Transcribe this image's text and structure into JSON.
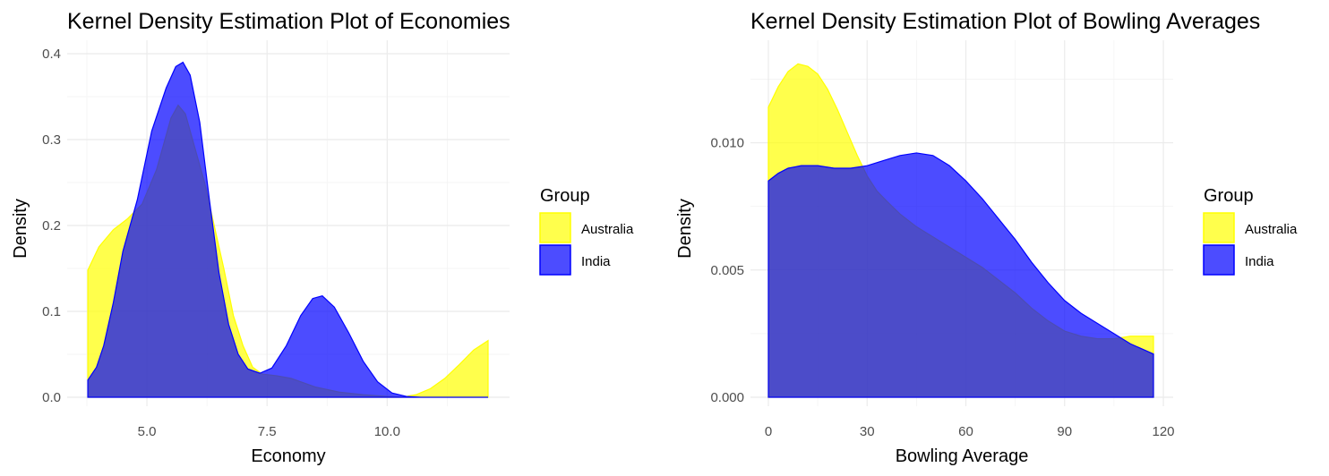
{
  "chart_data": [
    {
      "type": "area",
      "title": "Kernel Density Estimation Plot of Economies",
      "xlabel": "Economy",
      "ylabel": "Density",
      "xlim": [
        3.75,
        12.1
      ],
      "ylim": [
        0,
        0.4
      ],
      "xticks": [
        5.0,
        7.5,
        10.0
      ],
      "xtick_labels": [
        "5.0",
        "7.5",
        "10.0"
      ],
      "xminor": [
        3.75,
        6.25,
        8.75,
        11.25
      ],
      "yticks": [
        0.0,
        0.1,
        0.2,
        0.3,
        0.4
      ],
      "ytick_labels": [
        "0.0",
        "0.1",
        "0.2",
        "0.3",
        "0.4"
      ],
      "yminor": [
        0.05,
        0.15,
        0.25,
        0.35
      ],
      "legend": {
        "title": "Group",
        "position": "right"
      },
      "series": [
        {
          "name": "Australia",
          "color": "#ffff00",
          "outline": "#ffff00",
          "points": [
            [
              3.77,
              0.148
            ],
            [
              4.0,
              0.175
            ],
            [
              4.3,
              0.195
            ],
            [
              4.6,
              0.208
            ],
            [
              4.9,
              0.225
            ],
            [
              5.2,
              0.265
            ],
            [
              5.5,
              0.325
            ],
            [
              5.65,
              0.34
            ],
            [
              5.8,
              0.33
            ],
            [
              6.0,
              0.29
            ],
            [
              6.2,
              0.25
            ],
            [
              6.4,
              0.2
            ],
            [
              6.6,
              0.15
            ],
            [
              6.8,
              0.095
            ],
            [
              7.0,
              0.06
            ],
            [
              7.2,
              0.035
            ],
            [
              7.4,
              0.027
            ],
            [
              7.7,
              0.025
            ],
            [
              8.0,
              0.022
            ],
            [
              8.5,
              0.012
            ],
            [
              9.0,
              0.006
            ],
            [
              9.5,
              0.003
            ],
            [
              10.0,
              0.001
            ],
            [
              10.3,
              0.0
            ],
            [
              10.6,
              0.003
            ],
            [
              10.9,
              0.01
            ],
            [
              11.2,
              0.022
            ],
            [
              11.5,
              0.038
            ],
            [
              11.8,
              0.055
            ],
            [
              12.1,
              0.066
            ]
          ]
        },
        {
          "name": "India",
          "color": "#0000ff",
          "outline": "#0000ff",
          "points": [
            [
              3.77,
              0.02
            ],
            [
              3.95,
              0.035
            ],
            [
              4.1,
              0.06
            ],
            [
              4.3,
              0.11
            ],
            [
              4.5,
              0.17
            ],
            [
              4.8,
              0.23
            ],
            [
              5.1,
              0.31
            ],
            [
              5.4,
              0.36
            ],
            [
              5.6,
              0.385
            ],
            [
              5.75,
              0.39
            ],
            [
              5.9,
              0.375
            ],
            [
              6.1,
              0.32
            ],
            [
              6.3,
              0.23
            ],
            [
              6.5,
              0.145
            ],
            [
              6.7,
              0.085
            ],
            [
              6.9,
              0.05
            ],
            [
              7.1,
              0.033
            ],
            [
              7.35,
              0.028
            ],
            [
              7.6,
              0.034
            ],
            [
              7.9,
              0.06
            ],
            [
              8.2,
              0.095
            ],
            [
              8.45,
              0.115
            ],
            [
              8.65,
              0.118
            ],
            [
              8.9,
              0.105
            ],
            [
              9.2,
              0.075
            ],
            [
              9.5,
              0.042
            ],
            [
              9.8,
              0.018
            ],
            [
              10.1,
              0.005
            ],
            [
              10.4,
              0.001
            ],
            [
              10.7,
              0.0
            ],
            [
              12.1,
              0.0
            ]
          ]
        }
      ]
    },
    {
      "type": "area",
      "title": "Kernel Density Estimation Plot of Bowling Averages",
      "xlabel": "Bowling Average",
      "ylabel": "Density",
      "xlim": [
        0,
        117
      ],
      "ylim": [
        0,
        0.0135
      ],
      "xticks": [
        0,
        30,
        60,
        90,
        120
      ],
      "xtick_labels": [
        "0",
        "30",
        "60",
        "90",
        "120"
      ],
      "xminor": [
        15,
        45,
        75,
        105
      ],
      "yticks": [
        0.0,
        0.005,
        0.01
      ],
      "ytick_labels": [
        "0.000",
        "0.005",
        "0.010"
      ],
      "yminor": [
        0.0025,
        0.0075,
        0.0125
      ],
      "legend": {
        "title": "Group",
        "position": "right"
      },
      "series": [
        {
          "name": "Australia",
          "color": "#ffff00",
          "outline": "#ffff00",
          "points": [
            [
              0,
              0.0114
            ],
            [
              3,
              0.0122
            ],
            [
              6,
              0.0128
            ],
            [
              9,
              0.0131
            ],
            [
              12,
              0.013
            ],
            [
              15,
              0.0127
            ],
            [
              18,
              0.0121
            ],
            [
              21,
              0.0113
            ],
            [
              24,
              0.0104
            ],
            [
              27,
              0.0095
            ],
            [
              30,
              0.0087
            ],
            [
              33,
              0.0081
            ],
            [
              36,
              0.0077
            ],
            [
              40,
              0.0072
            ],
            [
              45,
              0.0067
            ],
            [
              50,
              0.0063
            ],
            [
              55,
              0.0059
            ],
            [
              60,
              0.0055
            ],
            [
              65,
              0.0051
            ],
            [
              70,
              0.0046
            ],
            [
              75,
              0.0041
            ],
            [
              80,
              0.0035
            ],
            [
              85,
              0.003
            ],
            [
              90,
              0.0026
            ],
            [
              95,
              0.0024
            ],
            [
              100,
              0.0023
            ],
            [
              105,
              0.0023
            ],
            [
              110,
              0.0024
            ],
            [
              117,
              0.0024
            ]
          ]
        },
        {
          "name": "India",
          "color": "#0000ff",
          "outline": "#0000ff",
          "points": [
            [
              0,
              0.0085
            ],
            [
              3,
              0.0088
            ],
            [
              6,
              0.009
            ],
            [
              10,
              0.0091
            ],
            [
              15,
              0.0091
            ],
            [
              20,
              0.009
            ],
            [
              25,
              0.009
            ],
            [
              30,
              0.0091
            ],
            [
              35,
              0.0093
            ],
            [
              40,
              0.0095
            ],
            [
              45,
              0.0096
            ],
            [
              50,
              0.0095
            ],
            [
              55,
              0.0091
            ],
            [
              60,
              0.0085
            ],
            [
              65,
              0.0078
            ],
            [
              70,
              0.007
            ],
            [
              75,
              0.0062
            ],
            [
              80,
              0.0053
            ],
            [
              85,
              0.0045
            ],
            [
              90,
              0.0038
            ],
            [
              95,
              0.0033
            ],
            [
              100,
              0.0029
            ],
            [
              105,
              0.0025
            ],
            [
              110,
              0.0021
            ],
            [
              117,
              0.0017
            ]
          ]
        }
      ]
    }
  ]
}
